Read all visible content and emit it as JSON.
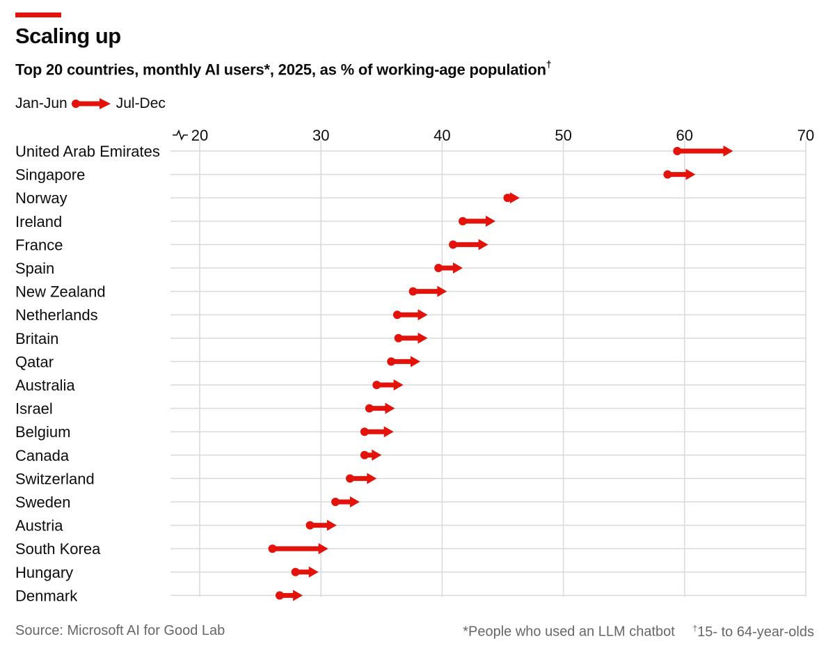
{
  "header": {
    "title": "Scaling up",
    "subtitle": "Top 20 countries, monthly AI users*, 2025, as % of working-age population",
    "subtitle_mark": "†",
    "accent_color": "#e3120b"
  },
  "legend": {
    "start_label": "Jan-Jun",
    "end_label": "Jul-Dec"
  },
  "footer": {
    "source": "Source: Microsoft AI for Good Lab",
    "note_star": "*People who used an LLM chatbot",
    "note_dagger_mark": "†",
    "note_dagger": "15- to 64-year-olds"
  },
  "chart_data": {
    "type": "arrow-dot",
    "title": "Scaling up",
    "subtitle": "Top 20 countries, monthly AI users*, 2025, as % of working-age population†",
    "xlim": [
      20,
      70
    ],
    "xticks": [
      20,
      30,
      40,
      50,
      60,
      70
    ],
    "axis_break": true,
    "grid": true,
    "legend": "top-left",
    "series": [
      {
        "name": "Jan-Jun"
      },
      {
        "name": "Jul-Dec"
      }
    ],
    "categories": [
      "United Arab Emirates",
      "Singapore",
      "Norway",
      "Ireland",
      "France",
      "Spain",
      "New Zealand",
      "Netherlands",
      "Britain",
      "Qatar",
      "Australia",
      "Israel",
      "Belgium",
      "Canada",
      "Switzerland",
      "Sweden",
      "Austria",
      "South Korea",
      "Hungary",
      "Denmark"
    ],
    "start": [
      59.4,
      58.6,
      45.4,
      41.7,
      40.9,
      39.7,
      37.6,
      36.3,
      36.4,
      35.8,
      34.6,
      34.0,
      33.6,
      33.6,
      32.4,
      31.2,
      29.1,
      26.0,
      27.9,
      26.6
    ],
    "end": [
      64.0,
      60.9,
      46.4,
      44.4,
      43.8,
      41.7,
      40.4,
      38.8,
      38.8,
      38.2,
      36.8,
      36.1,
      36.0,
      35.0,
      34.6,
      33.2,
      31.3,
      30.6,
      29.8,
      28.5
    ]
  }
}
